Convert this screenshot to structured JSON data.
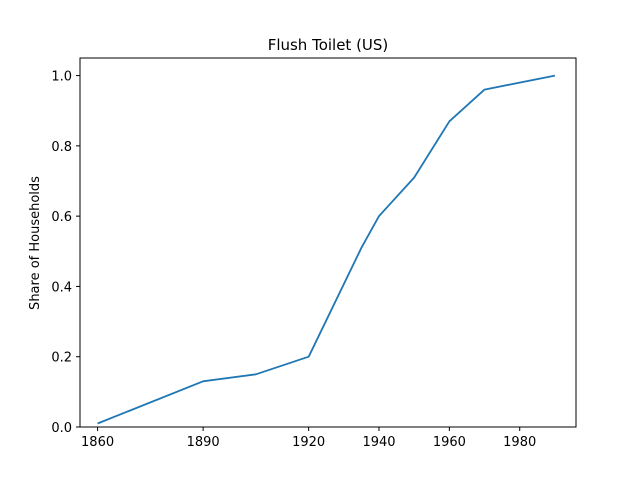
{
  "chart_data": {
    "type": "line",
    "title": "Flush Toilet (US)",
    "xlabel": "",
    "ylabel": "Share of Households",
    "xlim": [
      1855,
      1996
    ],
    "ylim": [
      0.0,
      1.05
    ],
    "xticks": [
      1860,
      1890,
      1920,
      1940,
      1960,
      1980
    ],
    "yticks": [
      0.0,
      0.2,
      0.4,
      0.6,
      0.8,
      1.0
    ],
    "ytick_labels": [
      "0.0",
      "0.2",
      "0.4",
      "0.6",
      "0.8",
      "1.0"
    ],
    "grid": false,
    "color": "#1f77b4",
    "series": [
      {
        "x": [
          1860,
          1890,
          1905,
          1920,
          1935,
          1940,
          1950,
          1960,
          1970,
          1990
        ],
        "y": [
          0.01,
          0.13,
          0.15,
          0.2,
          0.51,
          0.6,
          0.71,
          0.87,
          0.96,
          1.0
        ]
      }
    ]
  }
}
